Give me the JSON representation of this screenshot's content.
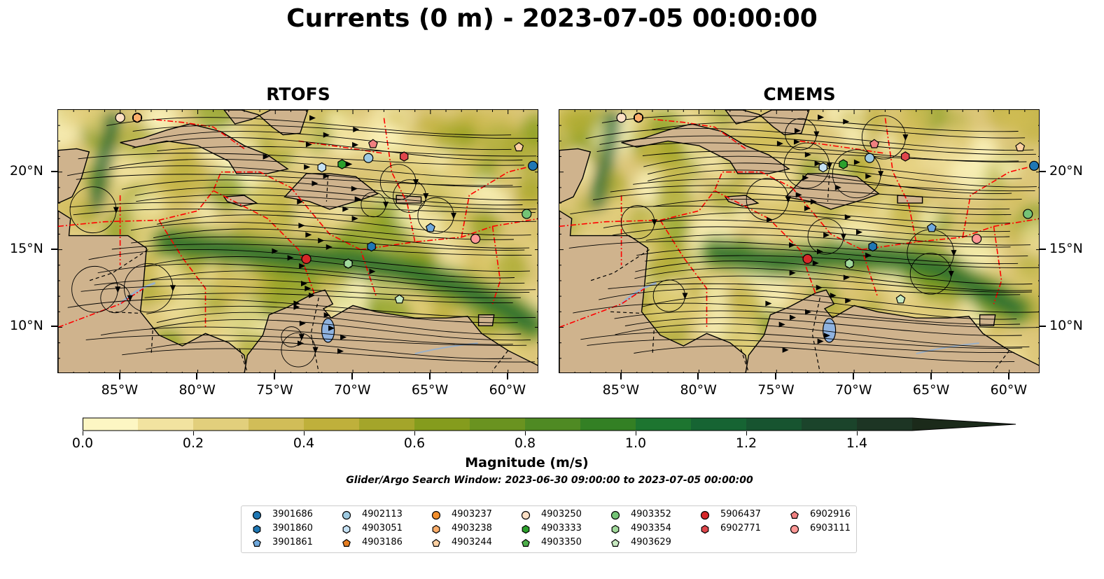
{
  "figure": {
    "title": "Currents (0 m) - 2023-07-05 00:00:00",
    "panels": [
      {
        "title": "RTOFS"
      },
      {
        "title": "CMEMS"
      }
    ],
    "lon_ticks": [
      "85°W",
      "80°W",
      "75°W",
      "70°W",
      "65°W",
      "60°W"
    ],
    "lat_ticks": [
      "20°N",
      "15°N",
      "10°N"
    ],
    "colorbar": {
      "label": "Magnitude (m/s)",
      "ticks": [
        "0.0",
        "0.2",
        "0.4",
        "0.6",
        "0.8",
        "1.0",
        "1.2",
        "1.4"
      ],
      "range": [
        0.0,
        1.5
      ],
      "extend": "max",
      "colors": [
        "#fdf6c3",
        "#f2e3a0",
        "#e2cf7c",
        "#d1bd58",
        "#bfb03b",
        "#a4a52a",
        "#859c1d",
        "#6a9320",
        "#4f8a23",
        "#338024",
        "#1d7530",
        "#166433",
        "#175430",
        "#1b442b",
        "#1d3524",
        "#1b2a1a"
      ]
    },
    "search_window": "Glider/Argo Search Window: 2023-06-30 09:00:00 to 2023-07-05 00:00:00",
    "land_color": "#cfb38d",
    "boundary_color": "#ff0000"
  },
  "chart_data": {
    "type": "map",
    "extent": {
      "lon": [
        -89,
        -58
      ],
      "lat": [
        7,
        24
      ]
    },
    "floats": [
      {
        "id": "3901686",
        "color": "#1f77b4",
        "marker": "circle",
        "lon": -58.4,
        "lat": 20.4
      },
      {
        "id": "3901860",
        "color": "#1f77b4",
        "marker": "hexagon",
        "lon": -68.8,
        "lat": 15.2
      },
      {
        "id": "3901861",
        "color": "#6fa8dc",
        "marker": "pentagon",
        "lon": -65.0,
        "lat": 16.4
      },
      {
        "id": "4902113",
        "color": "#9ecae1",
        "marker": "circle",
        "lon": -69.0,
        "lat": 20.9
      },
      {
        "id": "4903051",
        "color": "#c6e2f5",
        "marker": "hexagon",
        "lon": -72.0,
        "lat": 20.3
      },
      {
        "id": "4903186",
        "color": "#e67e22",
        "marker": "pentagon",
        "lon": -83.9,
        "lat": 23.5
      },
      {
        "id": "4903237",
        "color": "#f28e2b",
        "marker": "circle",
        "lon": -83.9,
        "lat": 23.5
      },
      {
        "id": "4903238",
        "color": "#fdae6b",
        "marker": "hexagon",
        "lon": -83.9,
        "lat": 23.5
      },
      {
        "id": "4903244",
        "color": "#fdd0a2",
        "marker": "pentagon",
        "lon": -59.3,
        "lat": 21.6
      },
      {
        "id": "4903250",
        "color": "#fde0c5",
        "marker": "circle",
        "lon": -85.0,
        "lat": 23.5
      },
      {
        "id": "4903333",
        "color": "#2ca02c",
        "marker": "hexagon",
        "lon": -70.7,
        "lat": 20.5
      },
      {
        "id": "4903350",
        "color": "#4daf4a",
        "marker": "pentagon",
        "lon": -70.3,
        "lat": 14.1
      },
      {
        "id": "4903352",
        "color": "#74c476",
        "marker": "circle",
        "lon": -58.8,
        "lat": 17.3
      },
      {
        "id": "4903354",
        "color": "#a1d99b",
        "marker": "hexagon",
        "lon": -70.3,
        "lat": 14.1
      },
      {
        "id": "4903629",
        "color": "#c7e9c0",
        "marker": "pentagon",
        "lon": -67.0,
        "lat": 11.8
      },
      {
        "id": "5906437",
        "color": "#d62728",
        "marker": "circle",
        "lon": -73.0,
        "lat": 14.4
      },
      {
        "id": "6902771",
        "color": "#e0474c",
        "marker": "hexagon",
        "lon": -66.7,
        "lat": 21.0
      },
      {
        "id": "6902916",
        "color": "#f08080",
        "marker": "pentagon",
        "lon": -68.7,
        "lat": 21.8
      },
      {
        "id": "6903111",
        "color": "#ff9896",
        "marker": "circle",
        "lon": -62.1,
        "lat": 15.7
      }
    ]
  },
  "legend": {
    "items": [
      {
        "label": "3901686"
      },
      {
        "label": "3901860"
      },
      {
        "label": "3901861"
      },
      {
        "label": "4902113"
      },
      {
        "label": "4903051"
      },
      {
        "label": "4903186"
      },
      {
        "label": "4903237"
      },
      {
        "label": "4903238"
      },
      {
        "label": "4903244"
      },
      {
        "label": "4903250"
      },
      {
        "label": "4903333"
      },
      {
        "label": "4903350"
      },
      {
        "label": "4903352"
      },
      {
        "label": "4903354"
      },
      {
        "label": "4903629"
      },
      {
        "label": "5906437"
      },
      {
        "label": "6902771"
      },
      {
        "label": "6902916"
      },
      {
        "label": "6903111"
      }
    ]
  }
}
